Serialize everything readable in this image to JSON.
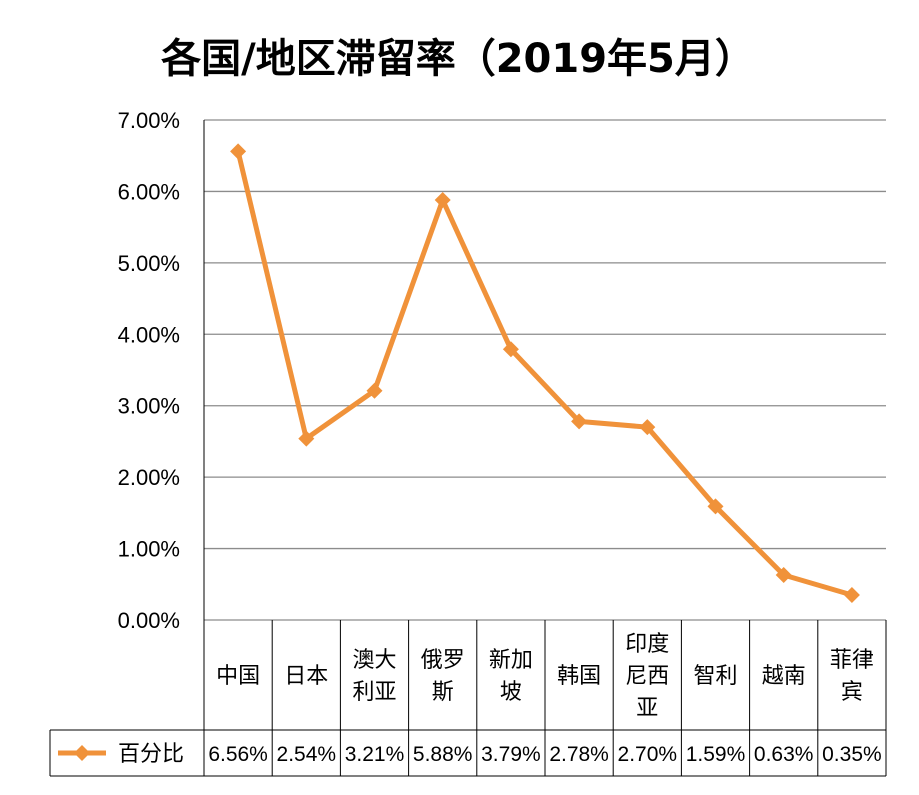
{
  "chart_data": {
    "type": "line",
    "title": "各国/地区滞留率（2019年5月）",
    "categories": [
      [
        "中国"
      ],
      [
        "日本"
      ],
      [
        "澳大",
        "利亚"
      ],
      [
        "俄罗",
        "斯"
      ],
      [
        "新加",
        "坡"
      ],
      [
        "韩国"
      ],
      [
        "印度",
        "尼西",
        "亚"
      ],
      [
        "智利"
      ],
      [
        "越南"
      ],
      [
        "菲律",
        "宾"
      ]
    ],
    "series": [
      {
        "name": "百分比",
        "values": [
          6.56,
          2.54,
          3.21,
          5.88,
          3.79,
          2.78,
          2.7,
          1.59,
          0.63,
          0.35
        ],
        "labels": [
          "6.56%",
          "2.54%",
          "3.21%",
          "5.88%",
          "3.79%",
          "2.78%",
          "2.70%",
          "1.59%",
          "0.63%",
          "0.35%"
        ]
      }
    ],
    "ylim": [
      0,
      7
    ],
    "yticks": [
      "0.00%",
      "1.00%",
      "2.00%",
      "3.00%",
      "4.00%",
      "5.00%",
      "6.00%",
      "7.00%"
    ],
    "grid": true,
    "legend": "bottom-left",
    "data_table": true,
    "colors": {
      "series": "#F0923A",
      "grid": "#8c8c8c",
      "table_border": "#000000"
    }
  }
}
